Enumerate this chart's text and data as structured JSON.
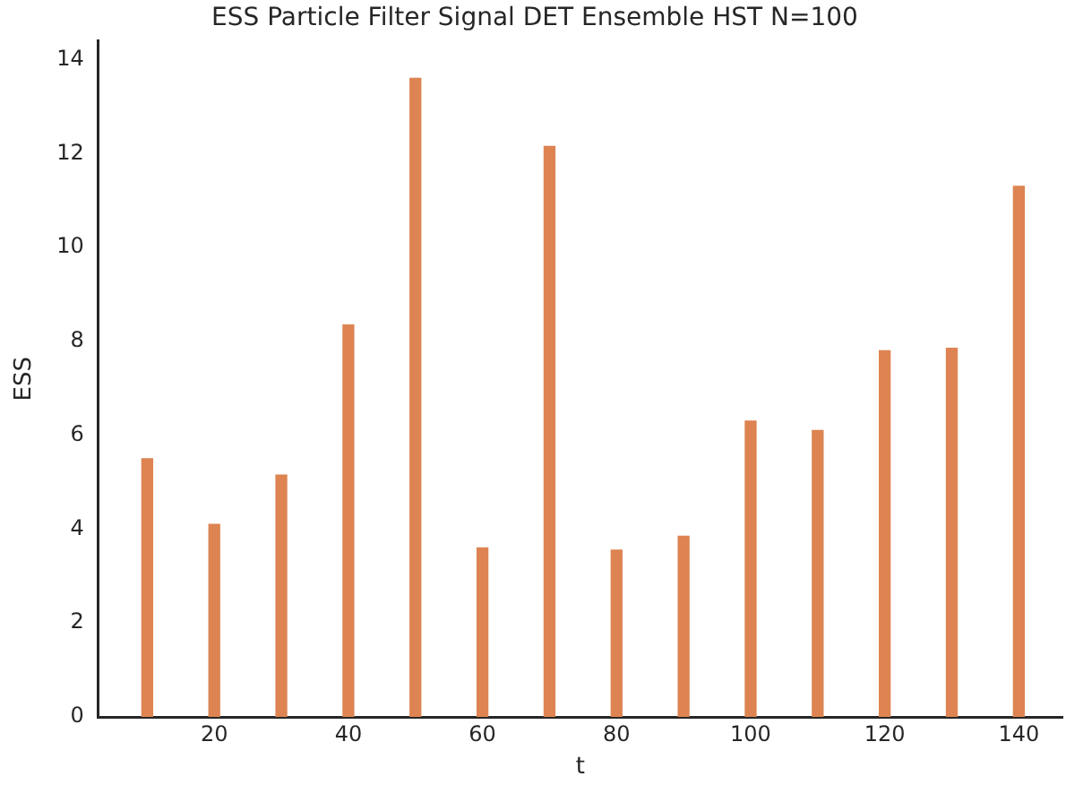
{
  "chart_data": {
    "type": "bar",
    "title": "ESS Particle Filter Signal DET Ensemble HST N=100",
    "xlabel": "t",
    "ylabel": "ESS",
    "x": [
      10,
      20,
      30,
      40,
      50,
      60,
      70,
      80,
      90,
      100,
      110,
      120,
      130,
      140
    ],
    "values": [
      5.5,
      4.1,
      5.15,
      8.35,
      13.6,
      3.6,
      12.15,
      3.55,
      3.85,
      6.3,
      6.1,
      7.8,
      7.85,
      11.3
    ],
    "color": "#dd8452",
    "xlim": [
      2.7,
      146.5
    ],
    "xticks": [
      20,
      40,
      60,
      80,
      100,
      120,
      140
    ],
    "ylim": [
      0,
      14.4
    ],
    "yticks": [
      0,
      2,
      4,
      6,
      8,
      10,
      12,
      14
    ],
    "grid": false,
    "legend": false
  }
}
